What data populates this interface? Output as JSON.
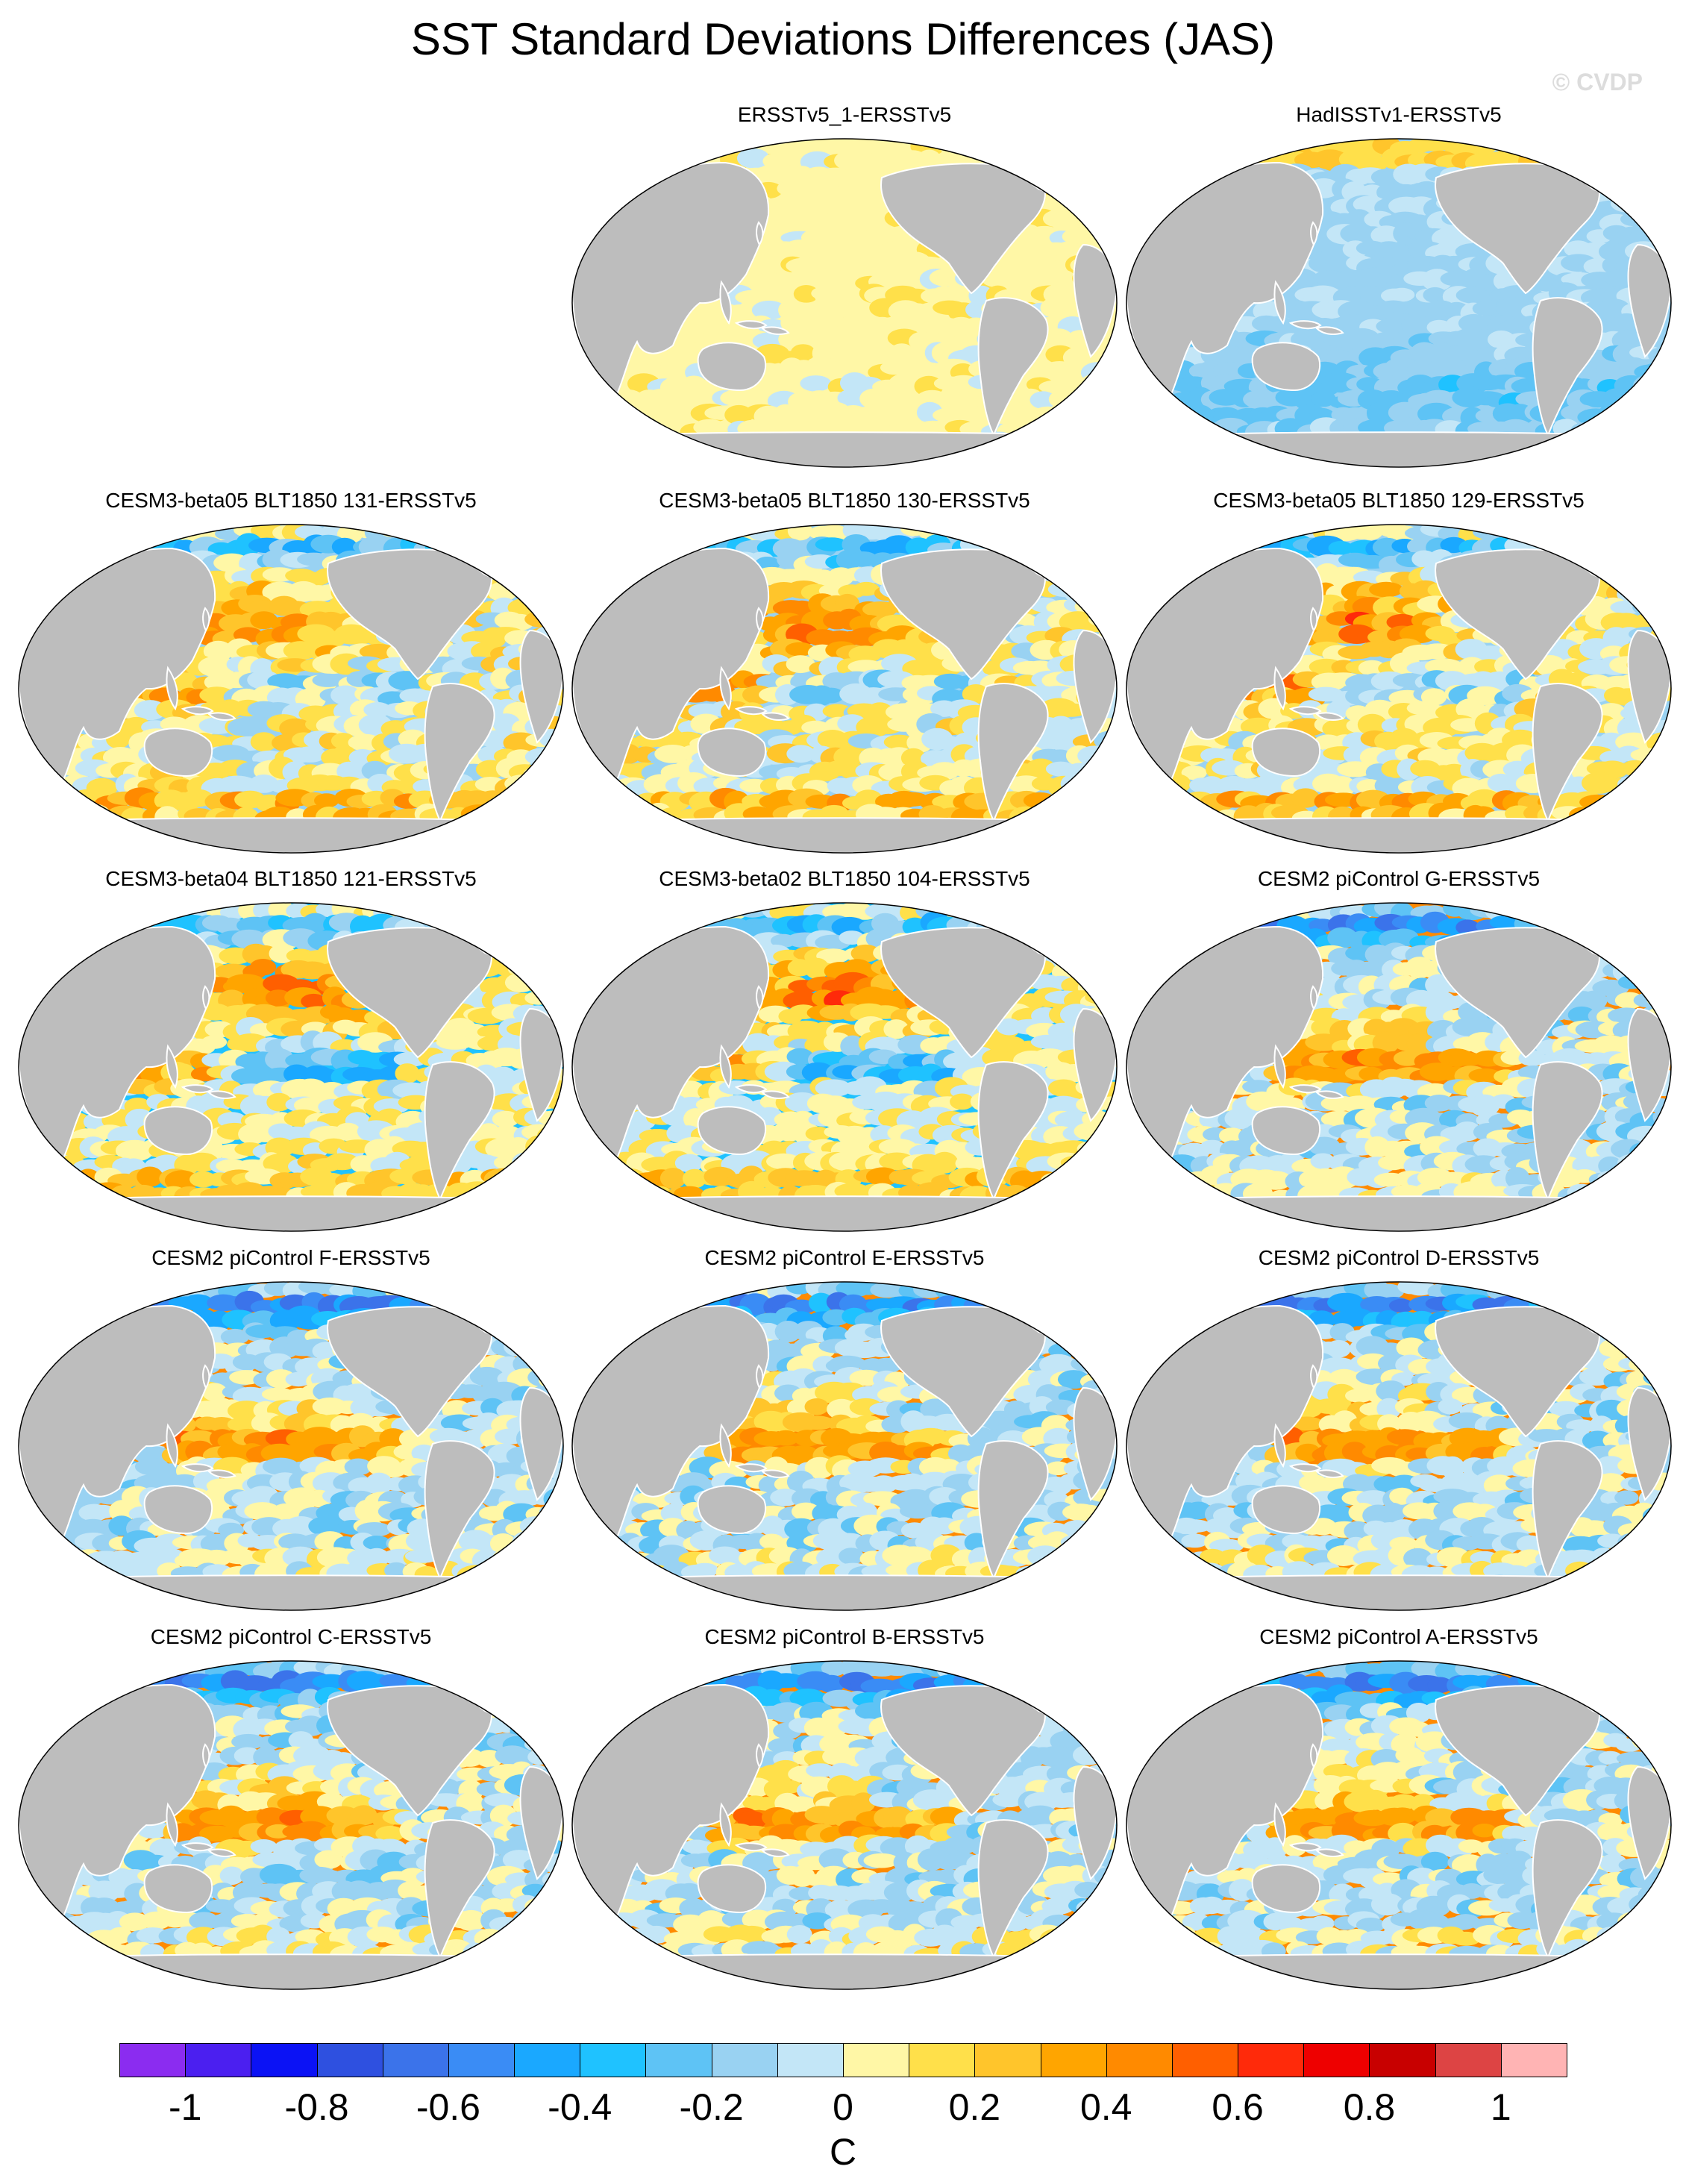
{
  "title": "SST Standard Deviations Differences (JAS)",
  "watermark": "© CVDP",
  "panels": [
    {
      "label": "ERSSTv5_1-ERSSTv5",
      "style": "flat"
    },
    {
      "label": "HadISSTv1-ERSSTv5",
      "style": "cool"
    },
    {
      "label": "CESM3-beta05 BLT1850 131-ERSSTv5",
      "style": "beta"
    },
    {
      "label": "CESM3-beta05 BLT1850 130-ERSSTv5",
      "style": "beta"
    },
    {
      "label": "CESM3-beta05 BLT1850 129-ERSSTv5",
      "style": "beta"
    },
    {
      "label": "CESM3-beta04 BLT1850 121-ERSSTv5",
      "style": "beta04"
    },
    {
      "label": "CESM3-beta02 BLT1850 104-ERSSTv5",
      "style": "beta04"
    },
    {
      "label": "CESM2 piControl G-ERSSTv5",
      "style": "cesm2"
    },
    {
      "label": "CESM2 piControl F-ERSSTv5",
      "style": "cesm2"
    },
    {
      "label": "CESM2 piControl E-ERSSTv5",
      "style": "cesm2"
    },
    {
      "label": "CESM2 piControl D-ERSSTv5",
      "style": "cesm2"
    },
    {
      "label": "CESM2 piControl C-ERSSTv5",
      "style": "cesm2"
    },
    {
      "label": "CESM2 piControl B-ERSSTv5",
      "style": "cesm2"
    },
    {
      "label": "CESM2 piControl A-ERSSTv5",
      "style": "cesm2"
    }
  ],
  "colorbar": {
    "colors": [
      "#8b2cf0",
      "#4b1ff0",
      "#0b12f5",
      "#2e50e0",
      "#3b73ea",
      "#3a8cf5",
      "#1aa8ff",
      "#1fc2ff",
      "#5ec3f5",
      "#99d2f2",
      "#c3e6f7",
      "#fff7a6",
      "#ffe04a",
      "#ffc52b",
      "#ffa500",
      "#ff8a00",
      "#ff5f00",
      "#ff2a0a",
      "#ee0000",
      "#c80000",
      "#dd4444",
      "#ffb4b4"
    ],
    "ticks": [
      "-1",
      "-0.8",
      "-0.6",
      "-0.4",
      "-0.2",
      "0",
      "0.2",
      "0.4",
      "0.6",
      "0.8",
      "1"
    ],
    "unit": "C"
  },
  "land_color": "#bdbdbd",
  "colors": {
    "land": "#bdbdbd",
    "coast": "#ffffff",
    "outline": "#000000"
  }
}
